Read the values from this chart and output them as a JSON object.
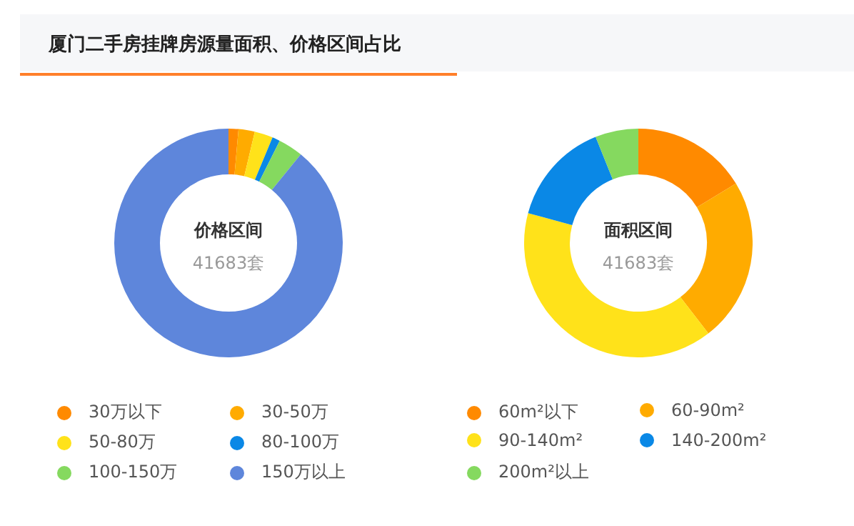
{
  "chart_data": [
    {
      "type": "donut",
      "title": "价格区间",
      "subtitle": "41683套",
      "annotations": [
        "厦门二手房挂牌房源量面积、价格区间占比"
      ],
      "legend": "bottom",
      "categories": [
        "30万以下",
        "30-50万",
        "50-80万",
        "80-100万",
        "100-150万",
        "150万以上"
      ],
      "values": [
        1.4,
        2.3,
        2.6,
        1.1,
        3.5,
        89.1
      ],
      "colors": [
        "#ff8a00",
        "#ffab00",
        "#ffe21a",
        "#0a88e6",
        "#85d95f",
        "#5e86db"
      ]
    },
    {
      "type": "donut",
      "title": "面积区间",
      "subtitle": "41683套",
      "legend": "bottom",
      "categories": [
        "60m²以下",
        "60-90m²",
        "90-140m²",
        "140-200m²",
        "200m²以上"
      ],
      "values": [
        16.3,
        23.2,
        39.7,
        14.7,
        6.1
      ],
      "colors": [
        "#ff8a00",
        "#ffab00",
        "#ffe21a",
        "#0a88e6",
        "#85d95f"
      ]
    }
  ]
}
